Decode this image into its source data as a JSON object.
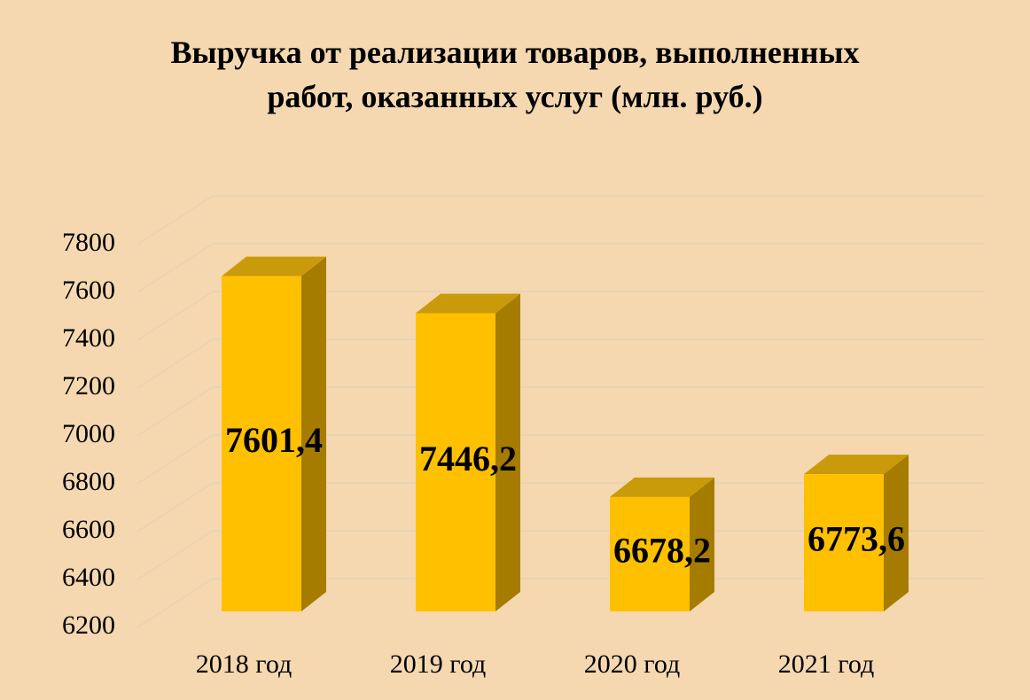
{
  "chart_data": {
    "type": "bar",
    "title": "Выручка от реализации товаров, выполненных работ, оказанных услуг (млн. руб.)",
    "categories": [
      "2018 год",
      "2019 год",
      "2020 год",
      "2021 год"
    ],
    "values": [
      7601.4,
      7446.2,
      6678.2,
      6773.6
    ],
    "value_labels": [
      "7601,4",
      "7446,2",
      "6678,2",
      "6773,6"
    ],
    "color": "#ffc000",
    "ylim": [
      6200,
      7800
    ],
    "yticks": [
      6200,
      6400,
      6600,
      6800,
      7000,
      7200,
      7400,
      7600,
      7800
    ],
    "grid": true
  }
}
